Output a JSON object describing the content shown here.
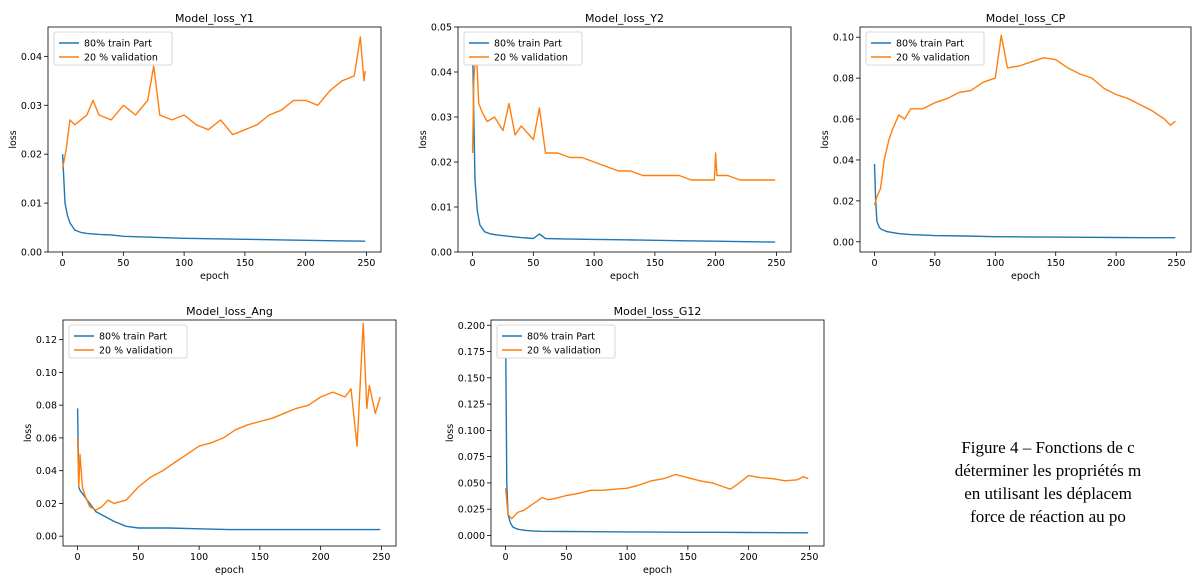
{
  "colors": {
    "train": "#1f77b4",
    "validation": "#ff7f0e",
    "axis": "#000000"
  },
  "caption": {
    "line1": "Figure 4 – Fonctions de c",
    "line2": "déterminer les propriétés m",
    "line3": "en utilisant les déplacem",
    "line4": "force de réaction au po"
  },
  "chart_data": [
    {
      "type": "line",
      "title": "Model_loss_Y1",
      "xlabel": "epoch",
      "ylabel": "loss",
      "xlim": [
        -12,
        262
      ],
      "ylim": [
        0,
        0.046
      ],
      "xticks": [
        0,
        50,
        100,
        150,
        200,
        250
      ],
      "xtick_labels": [
        "0",
        "50",
        "100",
        "150",
        "200",
        "250"
      ],
      "yticks": [
        0,
        0.01,
        0.02,
        0.03,
        0.04
      ],
      "ytick_labels": [
        "0.00",
        "0.01",
        "0.02",
        "0.03",
        "0.04"
      ],
      "legend": "top-left",
      "series": [
        {
          "name": "80% train Part",
          "x": [
            0,
            2,
            4,
            6,
            10,
            15,
            20,
            30,
            40,
            50,
            75,
            100,
            125,
            150,
            175,
            200,
            225,
            249
          ],
          "y": [
            0.02,
            0.01,
            0.0075,
            0.006,
            0.0045,
            0.004,
            0.0038,
            0.0036,
            0.0035,
            0.0032,
            0.003,
            0.0028,
            0.0027,
            0.0026,
            0.0025,
            0.0024,
            0.0023,
            0.0022
          ]
        },
        {
          "name": "20 % validation",
          "x": [
            0,
            3,
            6,
            10,
            15,
            20,
            25,
            30,
            40,
            50,
            60,
            70,
            75,
            80,
            90,
            100,
            110,
            120,
            130,
            140,
            150,
            160,
            170,
            180,
            190,
            200,
            210,
            220,
            230,
            240,
            245,
            248,
            249
          ],
          "y": [
            0.017,
            0.021,
            0.027,
            0.026,
            0.027,
            0.028,
            0.031,
            0.028,
            0.027,
            0.03,
            0.028,
            0.031,
            0.038,
            0.028,
            0.027,
            0.028,
            0.026,
            0.025,
            0.027,
            0.024,
            0.025,
            0.026,
            0.028,
            0.029,
            0.031,
            0.031,
            0.03,
            0.033,
            0.035,
            0.036,
            0.044,
            0.035,
            0.037
          ]
        }
      ]
    },
    {
      "type": "line",
      "title": "Model_loss_Y2",
      "xlabel": "epoch",
      "ylabel": "loss",
      "xlim": [
        -12,
        262
      ],
      "ylim": [
        0,
        0.05
      ],
      "xticks": [
        0,
        50,
        100,
        150,
        200,
        250
      ],
      "xtick_labels": [
        "0",
        "50",
        "100",
        "150",
        "200",
        "250"
      ],
      "yticks": [
        0,
        0.01,
        0.02,
        0.03,
        0.04,
        0.05
      ],
      "ytick_labels": [
        "0.00",
        "0.01",
        "0.02",
        "0.03",
        "0.04",
        "0.05"
      ],
      "legend": "top-left",
      "series": [
        {
          "name": "80% train Part",
          "x": [
            0,
            1,
            2,
            4,
            6,
            10,
            15,
            20,
            30,
            40,
            50,
            55,
            60,
            75,
            100,
            125,
            150,
            175,
            200,
            225,
            249
          ],
          "y": [
            0.046,
            0.03,
            0.016,
            0.009,
            0.006,
            0.0045,
            0.004,
            0.0038,
            0.0035,
            0.0032,
            0.003,
            0.004,
            0.003,
            0.0029,
            0.0028,
            0.0027,
            0.0026,
            0.0025,
            0.0024,
            0.0023,
            0.0022
          ]
        },
        {
          "name": "20 % validation",
          "x": [
            0,
            1,
            3,
            5,
            8,
            12,
            18,
            25,
            30,
            35,
            40,
            50,
            55,
            60,
            70,
            80,
            90,
            100,
            110,
            120,
            130,
            140,
            150,
            160,
            170,
            180,
            190,
            199,
            200,
            201,
            210,
            220,
            230,
            240,
            249
          ],
          "y": [
            0.022,
            0.038,
            0.046,
            0.033,
            0.031,
            0.029,
            0.03,
            0.027,
            0.033,
            0.026,
            0.028,
            0.025,
            0.032,
            0.022,
            0.022,
            0.021,
            0.021,
            0.02,
            0.019,
            0.018,
            0.018,
            0.017,
            0.017,
            0.017,
            0.017,
            0.016,
            0.016,
            0.016,
            0.022,
            0.017,
            0.017,
            0.016,
            0.016,
            0.016,
            0.016
          ]
        }
      ]
    },
    {
      "type": "line",
      "title": "Model_loss_CP",
      "xlabel": "epoch",
      "ylabel": "loss",
      "xlim": [
        -12,
        262
      ],
      "ylim": [
        -0.005,
        0.105
      ],
      "xticks": [
        0,
        50,
        100,
        150,
        200,
        250
      ],
      "xtick_labels": [
        "0",
        "50",
        "100",
        "150",
        "200",
        "250"
      ],
      "yticks": [
        0,
        0.02,
        0.04,
        0.06,
        0.08,
        0.1
      ],
      "ytick_labels": [
        "0.00",
        "0.02",
        "0.04",
        "0.06",
        "0.08",
        "0.10"
      ],
      "legend": "top-left",
      "series": [
        {
          "name": "80% train Part",
          "x": [
            0,
            1,
            2,
            4,
            6,
            10,
            15,
            20,
            30,
            50,
            75,
            100,
            125,
            150,
            175,
            200,
            225,
            249
          ],
          "y": [
            0.038,
            0.02,
            0.01,
            0.007,
            0.006,
            0.005,
            0.0045,
            0.004,
            0.0035,
            0.003,
            0.0028,
            0.0025,
            0.0024,
            0.0023,
            0.0022,
            0.0021,
            0.002,
            0.002
          ]
        },
        {
          "name": "20 % validation",
          "x": [
            0,
            2,
            5,
            8,
            10,
            12,
            15,
            20,
            25,
            30,
            40,
            50,
            60,
            70,
            80,
            90,
            100,
            105,
            110,
            120,
            130,
            140,
            150,
            160,
            170,
            180,
            190,
            200,
            210,
            220,
            230,
            240,
            245,
            249
          ],
          "y": [
            0.018,
            0.022,
            0.026,
            0.04,
            0.045,
            0.05,
            0.055,
            0.062,
            0.06,
            0.065,
            0.065,
            0.068,
            0.07,
            0.073,
            0.074,
            0.078,
            0.08,
            0.101,
            0.085,
            0.086,
            0.088,
            0.09,
            0.089,
            0.085,
            0.082,
            0.08,
            0.075,
            0.072,
            0.07,
            0.067,
            0.064,
            0.06,
            0.057,
            0.059
          ]
        }
      ]
    },
    {
      "type": "line",
      "title": "Model_loss_Ang",
      "xlabel": "epoch",
      "ylabel": "loss",
      "xlim": [
        -12,
        262
      ],
      "ylim": [
        -0.006,
        0.132
      ],
      "xticks": [
        0,
        50,
        100,
        150,
        200,
        250
      ],
      "xtick_labels": [
        "0",
        "50",
        "100",
        "150",
        "200",
        "250"
      ],
      "yticks": [
        0,
        0.02,
        0.04,
        0.06,
        0.08,
        0.1,
        0.12
      ],
      "ytick_labels": [
        "0.00",
        "0.02",
        "0.04",
        "0.06",
        "0.08",
        "0.10",
        "0.12"
      ],
      "legend": "top-left",
      "series": [
        {
          "name": "80% train Part",
          "x": [
            0,
            1,
            2,
            5,
            10,
            15,
            20,
            30,
            40,
            50,
            75,
            100,
            125,
            150,
            175,
            200,
            225,
            249
          ],
          "y": [
            0.078,
            0.03,
            0.028,
            0.025,
            0.02,
            0.015,
            0.013,
            0.009,
            0.006,
            0.005,
            0.005,
            0.0045,
            0.004,
            0.004,
            0.004,
            0.004,
            0.004,
            0.004
          ]
        },
        {
          "name": "20 % validation",
          "x": [
            0,
            1,
            2,
            4,
            6,
            10,
            15,
            20,
            25,
            30,
            40,
            50,
            60,
            70,
            80,
            90,
            100,
            110,
            120,
            130,
            140,
            150,
            160,
            170,
            180,
            190,
            200,
            210,
            220,
            225,
            230,
            235,
            238,
            240,
            245,
            249
          ],
          "y": [
            0.06,
            0.03,
            0.05,
            0.03,
            0.025,
            0.018,
            0.016,
            0.018,
            0.022,
            0.02,
            0.022,
            0.03,
            0.036,
            0.04,
            0.045,
            0.05,
            0.055,
            0.057,
            0.06,
            0.065,
            0.068,
            0.07,
            0.072,
            0.075,
            0.078,
            0.08,
            0.085,
            0.088,
            0.085,
            0.09,
            0.055,
            0.13,
            0.078,
            0.092,
            0.075,
            0.085
          ]
        }
      ]
    },
    {
      "type": "line",
      "title": "Model_loss_G12",
      "xlabel": "epoch",
      "ylabel": "loss",
      "xlim": [
        -12,
        262
      ],
      "ylim": [
        -0.01,
        0.205
      ],
      "xticks": [
        0,
        50,
        100,
        150,
        200,
        250
      ],
      "xtick_labels": [
        "0",
        "50",
        "100",
        "150",
        "200",
        "250"
      ],
      "yticks": [
        0,
        0.025,
        0.05,
        0.075,
        0.1,
        0.125,
        0.15,
        0.175,
        0.2
      ],
      "ytick_labels": [
        "0.000",
        "0.025",
        "0.050",
        "0.075",
        "0.100",
        "0.125",
        "0.150",
        "0.175",
        "0.200"
      ],
      "legend": "top-left",
      "series": [
        {
          "name": "80% train Part",
          "x": [
            0,
            1,
            2,
            4,
            6,
            10,
            15,
            20,
            30,
            50,
            75,
            100,
            125,
            150,
            175,
            200,
            225,
            249
          ],
          "y": [
            0.195,
            0.05,
            0.02,
            0.012,
            0.008,
            0.006,
            0.005,
            0.0045,
            0.004,
            0.0038,
            0.0036,
            0.0034,
            0.0032,
            0.003,
            0.003,
            0.0028,
            0.0027,
            0.0026
          ]
        },
        {
          "name": "20 % validation",
          "x": [
            0,
            2,
            5,
            10,
            15,
            20,
            25,
            30,
            35,
            40,
            50,
            60,
            70,
            80,
            90,
            100,
            110,
            120,
            130,
            140,
            150,
            160,
            170,
            180,
            185,
            190,
            200,
            210,
            220,
            230,
            240,
            245,
            249
          ],
          "y": [
            0.045,
            0.02,
            0.016,
            0.022,
            0.024,
            0.028,
            0.032,
            0.036,
            0.034,
            0.035,
            0.038,
            0.04,
            0.043,
            0.043,
            0.044,
            0.045,
            0.048,
            0.052,
            0.054,
            0.058,
            0.055,
            0.052,
            0.05,
            0.046,
            0.044,
            0.048,
            0.057,
            0.055,
            0.054,
            0.052,
            0.053,
            0.056,
            0.054
          ]
        }
      ]
    }
  ]
}
